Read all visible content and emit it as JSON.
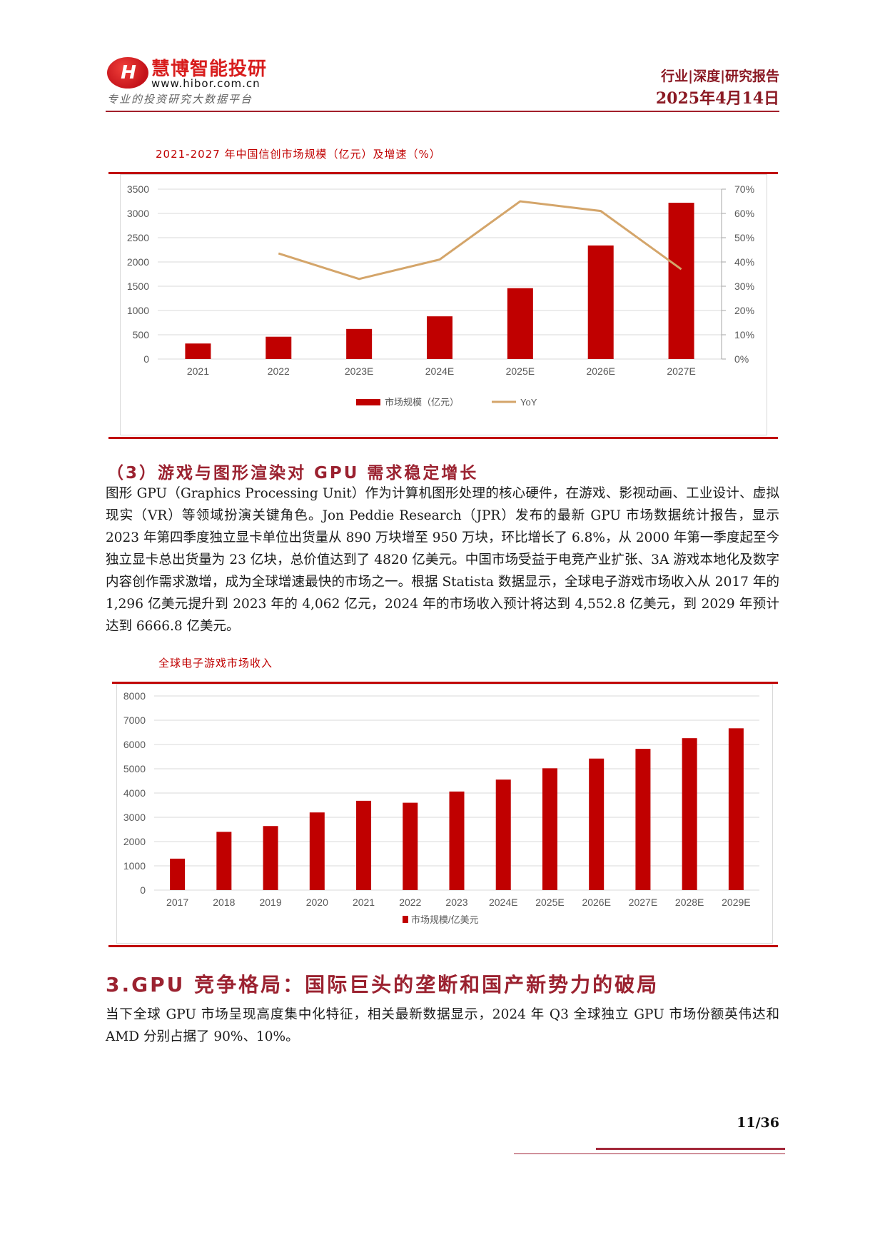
{
  "header": {
    "logo_mark": "H",
    "logo_name": "慧博智能投研",
    "logo_url": "www.hibor.com.cn",
    "logo_slogan": "专业的投资研究大数据平台",
    "report_type": "行业|深度|研究报告",
    "date": "2025年4月14日"
  },
  "chart1": {
    "title": "2021-2027 年中国信创市场规模（亿元）及增速（%）",
    "legend_bar": "市场规模（亿元）",
    "legend_line": "YoY"
  },
  "section3_sub": {
    "heading": "（3）游戏与图形渲染对 GPU 需求稳定增长",
    "paragraph": "图形 GPU（Graphics Processing Unit）作为计算机图形处理的核心硬件，在游戏、影视动画、工业设计、虚拟现实（VR）等领域扮演关键角色。Jon Peddie Research（JPR）发布的最新 GPU 市场数据统计报告，显示 2023 年第四季度独立显卡单位出货量从 890 万块增至 950 万块，环比增长了 6.8%，从 2000 年第一季度起至今独立显卡总出货量为 23 亿块，总价值达到了 4820 亿美元。中国市场受益于电竞产业扩张、3A 游戏本地化及数字内容创作需求激增，成为全球增速最快的市场之一。根据 Statista 数据显示，全球电子游戏市场收入从 2017 年的 1,296 亿美元提升到 2023 年的 4,062 亿元，2024 年的市场收入预计将达到 4,552.8 亿美元，到 2029 年预计达到 6666.8 亿美元。"
  },
  "chart2": {
    "title": "全球电子游戏市场收入",
    "legend_bar": "市场规模/亿美元"
  },
  "section3": {
    "heading": "3.GPU 竞争格局：国际巨头的垄断和国产新势力的破局",
    "paragraph": "当下全球 GPU 市场呈现高度集中化特征，相关最新数据显示，2024 年 Q3 全球独立 GPU 市场份额英伟达和 AMD 分别占据了 90%、10%。"
  },
  "footer": {
    "page": "11/36"
  },
  "colors": {
    "bar": "#C00000",
    "line": "#D4A56A",
    "accent": "#9B2230",
    "grid": "#D9D9D9"
  },
  "chart_data": [
    {
      "type": "bar",
      "title": "2021-2027 年中国信创市场规模（亿元）及增速（%）",
      "categories": [
        "2021",
        "2022",
        "2023E",
        "2024E",
        "2025E",
        "2026E",
        "2027E"
      ],
      "series": [
        {
          "name": "市场规模（亿元）",
          "type": "bar",
          "axis": "left",
          "values": [
            320,
            460,
            620,
            880,
            1460,
            2340,
            3220
          ]
        },
        {
          "name": "YoY",
          "type": "line",
          "axis": "right",
          "unit": "%",
          "values": [
            null,
            43.5,
            33,
            41,
            65,
            61,
            37
          ]
        }
      ],
      "ylim": [
        0,
        3500
      ],
      "yticks": [
        0,
        500,
        1000,
        1500,
        2000,
        2500,
        3000,
        3500
      ],
      "y2lim": [
        0,
        70
      ],
      "y2ticks": [
        "0%",
        "10%",
        "20%",
        "30%",
        "40%",
        "50%",
        "60%",
        "70%"
      ],
      "xlabel": "",
      "ylabel": "",
      "grid": true,
      "legend_position": "bottom"
    },
    {
      "type": "bar",
      "title": "全球电子游戏市场收入",
      "categories": [
        "2017",
        "2018",
        "2019",
        "2020",
        "2021",
        "2022",
        "2023",
        "2024E",
        "2025E",
        "2026E",
        "2027E",
        "2028E",
        "2029E"
      ],
      "series": [
        {
          "name": "市场规模/亿美元",
          "values": [
            1296,
            2400,
            2640,
            3200,
            3680,
            3600,
            4062,
            4553,
            5020,
            5420,
            5820,
            6260,
            6667
          ]
        }
      ],
      "ylim": [
        0,
        8000
      ],
      "yticks": [
        0,
        1000,
        2000,
        3000,
        4000,
        5000,
        6000,
        7000,
        8000
      ],
      "xlabel": "",
      "ylabel": "",
      "grid": true,
      "legend_position": "bottom"
    }
  ]
}
